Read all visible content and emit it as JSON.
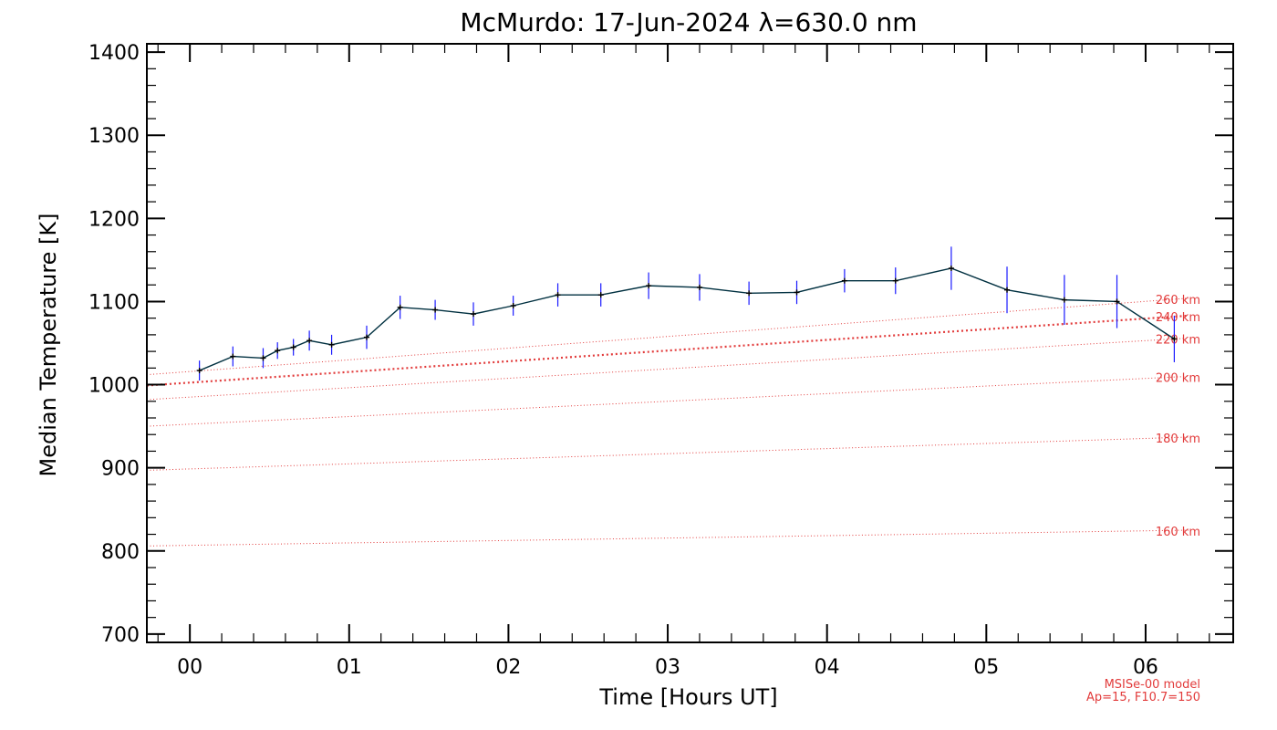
{
  "chart_data": {
    "type": "line",
    "title": "McMurdo: 17-Jun-2024 λ=630.0 nm",
    "xlabel": "Time [Hours UT]",
    "ylabel": "Median Temperature [K]",
    "xlim": [
      -0.27,
      6.55
    ],
    "ylim": [
      690,
      1410
    ],
    "x_ticks": [
      0,
      1,
      2,
      3,
      4,
      5,
      6
    ],
    "x_tick_labels": [
      "00",
      "01",
      "02",
      "03",
      "04",
      "05",
      "06"
    ],
    "y_ticks": [
      700,
      800,
      900,
      1000,
      1100,
      1200,
      1300,
      1400
    ],
    "y_tick_labels": [
      "700",
      "800",
      "900",
      "1000",
      "1100",
      "1200",
      "1300",
      "1400"
    ],
    "series": [
      {
        "style": "line-with-error-bars",
        "color": "#003040",
        "error_color": "#1a1aff",
        "x": [
          0.06,
          0.27,
          0.46,
          0.55,
          0.65,
          0.75,
          0.89,
          1.11,
          1.32,
          1.54,
          1.78,
          2.03,
          2.31,
          2.58,
          2.88,
          3.2,
          3.51,
          3.81,
          4.11,
          4.43,
          4.78,
          5.13,
          5.49,
          5.82,
          6.18
        ],
        "y": [
          1017,
          1034,
          1032,
          1041,
          1045,
          1053,
          1048,
          1057,
          1093,
          1090,
          1085,
          1095,
          1108,
          1108,
          1119,
          1117,
          1110,
          1111,
          1125,
          1125,
          1140,
          1114,
          1102,
          1100,
          1055
        ],
        "error": [
          12,
          12,
          12,
          10,
          10,
          12,
          12,
          14,
          14,
          12,
          14,
          12,
          14,
          14,
          16,
          16,
          14,
          14,
          14,
          16,
          26,
          28,
          30,
          32,
          28
        ]
      }
    ],
    "model_curves": [
      {
        "label": "260 km",
        "x": [
          -0.27,
          6.27
        ],
        "y": [
          1012,
          1104
        ],
        "style": "dotted",
        "weight": "thin"
      },
      {
        "label": "240 km",
        "x": [
          -0.27,
          6.27
        ],
        "y": [
          999,
          1083
        ],
        "style": "dotted",
        "weight": "thick"
      },
      {
        "label": "220 km",
        "x": [
          -0.27,
          6.27
        ],
        "y": [
          982,
          1056
        ],
        "style": "dotted",
        "weight": "thin"
      },
      {
        "label": "200 km",
        "x": [
          -0.27,
          6.27
        ],
        "y": [
          950,
          1010
        ],
        "style": "dotted",
        "weight": "thin"
      },
      {
        "label": "180 km",
        "x": [
          -0.27,
          6.27
        ],
        "y": [
          897,
          937
        ],
        "style": "dotted",
        "weight": "thin"
      },
      {
        "label": "160 km",
        "x": [
          -0.27,
          6.27
        ],
        "y": [
          806,
          825
        ],
        "style": "dotted",
        "weight": "thin"
      }
    ],
    "model_color": "#e23b3b",
    "notes": [
      "MSISe-00 model",
      "Ap=15, F10.7=150"
    ],
    "grid": false,
    "legend": "none"
  }
}
